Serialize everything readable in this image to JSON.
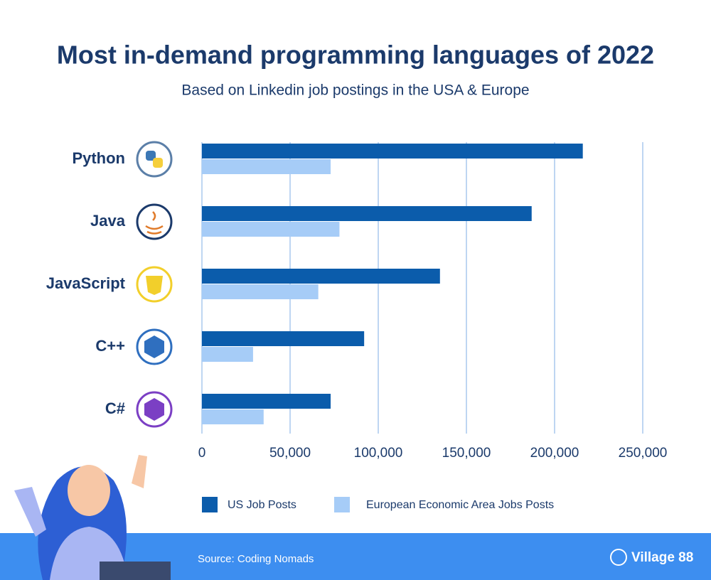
{
  "chart_data": {
    "type": "bar",
    "orientation": "horizontal",
    "title": "Most in-demand programming languages of 2022",
    "subtitle": "Based on Linkedin job postings in the USA & Europe",
    "categories": [
      "Python",
      "Java",
      "JavaScript",
      "C++",
      "C#"
    ],
    "series": [
      {
        "name": "US Job Posts",
        "color": "#0b5cab",
        "values": [
          216000,
          187000,
          135000,
          92000,
          73000
        ]
      },
      {
        "name": "European Economic Area Jobs Posts",
        "color": "#a6ccf7",
        "values": [
          73000,
          78000,
          66000,
          29000,
          35000
        ]
      }
    ],
    "xlim": [
      0,
      250000
    ],
    "xticks": [
      0,
      {
        "value": 50000,
        "label": "50,000"
      },
      {
        "value": 100000,
        "label": "100,000"
      },
      {
        "value": 150000,
        "label": "150,000"
      },
      {
        "value": 200000,
        "label": "200,000"
      },
      {
        "value": 250000,
        "label": "250,000"
      }
    ],
    "grid": true,
    "grid_color": "#a9c8ee",
    "source": "Source: Coding Nomads",
    "brand": "Village 88"
  }
}
